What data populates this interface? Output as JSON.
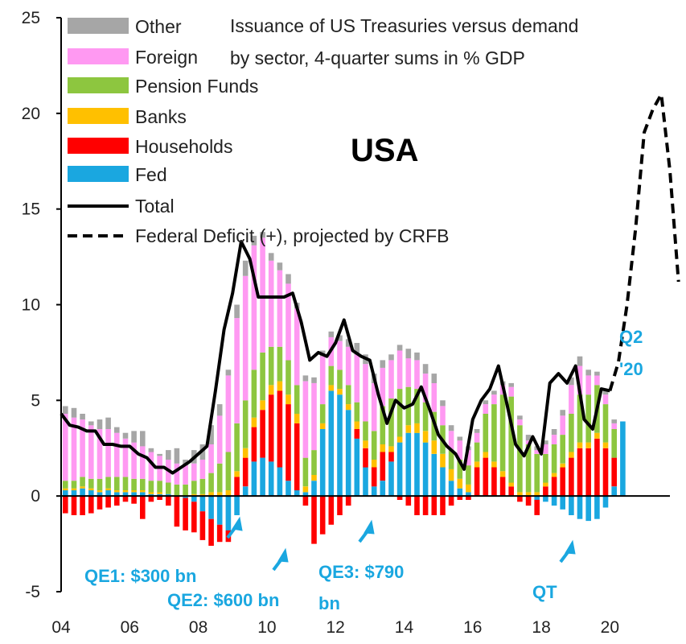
{
  "chart_data": {
    "type": "bar",
    "stacked": true,
    "title": [
      "Issuance of US Treasuries versus demand",
      "by sector, 4-quarter sums in % GDP"
    ],
    "country_label": "USA",
    "ylim": [
      -5,
      25
    ],
    "y_ticks": [
      "25",
      "20",
      "15",
      "10",
      "5",
      "0",
      "-5"
    ],
    "x_ticks": [
      "04",
      "06",
      "08",
      "10",
      "12",
      "14",
      "16",
      "18",
      "20"
    ],
    "legend": [
      {
        "label": "Other",
        "color": "#a6a6a6",
        "kind": "bar"
      },
      {
        "label": "Foreign",
        "color": "#ff99f2",
        "kind": "bar"
      },
      {
        "label": "Pension Funds",
        "color": "#8dc63f",
        "kind": "bar"
      },
      {
        "label": "Banks",
        "color": "#ffc000",
        "kind": "bar"
      },
      {
        "label": "Households",
        "color": "#ff0000",
        "kind": "bar"
      },
      {
        "label": "Fed",
        "color": "#1aa7e0",
        "kind": "bar"
      },
      {
        "label": "Total",
        "color": "#000000",
        "kind": "line"
      },
      {
        "label": "Federal Deficit (+), projected by CRFB",
        "color": "#000000",
        "kind": "dashed"
      }
    ],
    "annotations": [
      {
        "lines": [
          "QE1: $300 bn"
        ]
      },
      {
        "lines": [
          "QE2: $600 bn"
        ]
      },
      {
        "lines": [
          "QE3: $790",
          "bn"
        ]
      },
      {
        "lines": [
          "QT"
        ]
      },
      {
        "lines": [
          "Q2",
          "'20"
        ]
      }
    ],
    "quarters": [
      "04Q1",
      "04Q2",
      "04Q3",
      "04Q4",
      "05Q1",
      "05Q2",
      "05Q3",
      "05Q4",
      "06Q1",
      "06Q2",
      "06Q3",
      "06Q4",
      "07Q1",
      "07Q2",
      "07Q3",
      "07Q4",
      "08Q1",
      "08Q2",
      "08Q3",
      "08Q4",
      "09Q1",
      "09Q2",
      "09Q3",
      "09Q4",
      "10Q1",
      "10Q2",
      "10Q3",
      "10Q4",
      "11Q1",
      "11Q2",
      "11Q3",
      "11Q4",
      "12Q1",
      "12Q2",
      "12Q3",
      "12Q4",
      "13Q1",
      "13Q2",
      "13Q3",
      "13Q4",
      "14Q1",
      "14Q2",
      "14Q3",
      "14Q4",
      "15Q1",
      "15Q2",
      "15Q3",
      "15Q4",
      "16Q1",
      "16Q2",
      "16Q3",
      "16Q4",
      "17Q1",
      "17Q2",
      "17Q3",
      "17Q4",
      "18Q1",
      "18Q2",
      "18Q3",
      "18Q4",
      "19Q1",
      "19Q2",
      "19Q3",
      "19Q4",
      "20Q1",
      "20Q2"
    ],
    "series": [
      {
        "name": "Fed",
        "color": "#1aa7e0",
        "values": [
          0.3,
          0.3,
          0.4,
          0.3,
          0.2,
          0.3,
          0.2,
          0.2,
          0.2,
          0.2,
          0.1,
          0.1,
          0.1,
          0,
          -0.1,
          -0.3,
          -0.8,
          -1.2,
          -1.5,
          -1.8,
          -1.0,
          0.5,
          1.8,
          2.0,
          1.8,
          1.5,
          0.8,
          0.3,
          0.2,
          0.8,
          3.5,
          5.5,
          5.3,
          4.5,
          3.0,
          1.5,
          0.5,
          0.8,
          1.8,
          2.8,
          3.3,
          3.3,
          2.8,
          2.2,
          1.5,
          0.8,
          0.4,
          0.2,
          0,
          0,
          0,
          0,
          0,
          0,
          0,
          -0.2,
          -0.3,
          -0.5,
          -0.7,
          -1.0,
          -1.2,
          -1.3,
          -1.2,
          -0.6,
          0.5,
          3.9
        ]
      },
      {
        "name": "Households",
        "color": "#ff0000",
        "values": [
          -0.9,
          -1.0,
          -1.0,
          -0.9,
          -0.7,
          -0.6,
          -0.5,
          -0.3,
          -0.4,
          -1.2,
          -0.3,
          -0.2,
          -0.5,
          -1.6,
          -1.7,
          -1.6,
          -1.5,
          -1.4,
          -0.9,
          -0.6,
          1.0,
          1.5,
          1.8,
          2.5,
          3.5,
          4.0,
          4.0,
          3.5,
          -0.5,
          -2.5,
          -2.0,
          -1.5,
          -1.0,
          -0.5,
          0.5,
          1.0,
          1.0,
          1.5,
          0.5,
          -0.2,
          -0.5,
          -1.0,
          -1.0,
          -1.0,
          -1.0,
          -0.5,
          -0.2,
          -0.2,
          1.5,
          2.0,
          1.5,
          1.0,
          0.5,
          -0.3,
          -0.5,
          -0.8,
          0.5,
          1.0,
          1.5,
          2.0,
          2.5,
          2.5,
          3.0,
          2.5,
          1.5,
          0
        ]
      },
      {
        "name": "Banks",
        "color": "#ffc000",
        "values": [
          0.1,
          0.1,
          0.1,
          0.1,
          0.1,
          0.1,
          0.1,
          0.1,
          0.1,
          0.1,
          0.1,
          0.1,
          0,
          0,
          0,
          0.1,
          0.1,
          0.2,
          0.2,
          0.3,
          0.3,
          0.5,
          0.5,
          0.5,
          0.5,
          0.5,
          0.5,
          0.5,
          0.3,
          0.3,
          0.3,
          0.3,
          0.3,
          0.3,
          0.4,
          0.4,
          0.4,
          0.4,
          0.3,
          0.3,
          0.4,
          0.5,
          0.6,
          0.7,
          0.7,
          0.6,
          0.5,
          0.4,
          0.3,
          0.3,
          0.3,
          0.3,
          0.2,
          0.2,
          0.2,
          0.2,
          0.2,
          0.2,
          0.2,
          0.3,
          0.3,
          0.3,
          0.3,
          0.3,
          0,
          0
        ]
      },
      {
        "name": "Pension Funds",
        "color": "#8dc63f",
        "values": [
          0.4,
          0.4,
          0.5,
          0.5,
          0.6,
          0.6,
          0.7,
          0.7,
          0.6,
          0.6,
          0.6,
          0.6,
          0.6,
          0.6,
          0.6,
          0.7,
          0.8,
          1.0,
          1.5,
          2.0,
          2.5,
          2.5,
          2.5,
          2.5,
          2.0,
          1.8,
          1.8,
          1.5,
          1.5,
          1.3,
          1.0,
          1.0,
          1.0,
          1.0,
          1.0,
          1.0,
          1.5,
          2.0,
          2.5,
          2.5,
          2.0,
          1.8,
          1.5,
          1.5,
          1.5,
          1.0,
          1.0,
          1.0,
          1.0,
          2.0,
          3.0,
          4.0,
          4.5,
          3.5,
          2.5,
          2.0,
          1.5,
          1.5,
          1.5,
          2.0,
          2.5,
          2.5,
          2.5,
          2.0,
          1.5,
          0
        ]
      },
      {
        "name": "Foreign",
        "color": "#ff99f2",
        "values": [
          3.5,
          3.3,
          3.0,
          2.8,
          2.6,
          2.5,
          2.3,
          2.0,
          1.9,
          1.7,
          1.5,
          1.3,
          1.2,
          1.1,
          1.0,
          0.9,
          1.0,
          1.5,
          2.5,
          4.0,
          5.5,
          6.5,
          6.5,
          6.0,
          4.5,
          4.0,
          4.0,
          4.0,
          4.0,
          3.5,
          2.5,
          1.5,
          1.5,
          2.0,
          2.5,
          3.0,
          2.5,
          2.0,
          2.0,
          2.0,
          1.5,
          1.5,
          1.5,
          1.5,
          1.0,
          1.0,
          1.0,
          0.8,
          0.5,
          0.5,
          0.5,
          0.5,
          0.5,
          0.3,
          0.2,
          0.2,
          0.5,
          0.5,
          1.0,
          1.5,
          1.5,
          1.0,
          0.5,
          0.5,
          0.3,
          0
        ]
      },
      {
        "name": "Other",
        "color": "#a6a6a6",
        "values": [
          0.4,
          0.5,
          0.3,
          0.2,
          0.5,
          0.6,
          0.3,
          0.3,
          0.6,
          0.8,
          0.2,
          0.1,
          0.5,
          0.8,
          0.3,
          0.7,
          0.8,
          1.0,
          0.6,
          0.3,
          0.7,
          0.8,
          0.5,
          0.3,
          0.4,
          0.4,
          0.5,
          0.3,
          0.3,
          0.3,
          0.3,
          0.3,
          0.3,
          0.4,
          0.6,
          0.5,
          0.5,
          0.4,
          0.3,
          0.3,
          0.5,
          0.4,
          0.5,
          0.5,
          0.3,
          0.3,
          0.2,
          0.2,
          0.2,
          0.2,
          0.2,
          0.2,
          0.2,
          0.2,
          0.3,
          0.2,
          0.2,
          0.3,
          0.3,
          0.4,
          0.5,
          0.3,
          0.2,
          0.3,
          0.2,
          0
        ]
      }
    ],
    "total": {
      "name": "Total",
      "x": [
        2004.0,
        2004.25,
        2004.5,
        2004.75,
        2005.0,
        2005.25,
        2005.5,
        2005.75,
        2006.0,
        2006.25,
        2006.5,
        2006.75,
        2007.0,
        2007.25,
        2007.5,
        2007.75,
        2008.0,
        2008.25,
        2008.5,
        2008.75,
        2009.0,
        2009.25,
        2009.5,
        2009.75,
        2010.0,
        2010.25,
        2010.5,
        2010.75,
        2011.0,
        2011.25,
        2011.5,
        2011.75,
        2012.0,
        2012.25,
        2012.5,
        2012.75,
        2013.0,
        2013.25,
        2013.5,
        2013.75,
        2014.0,
        2014.25,
        2014.5,
        2014.75,
        2015.0,
        2015.25,
        2015.5,
        2015.75,
        2016.0,
        2016.25,
        2016.5,
        2016.75,
        2017.0,
        2017.25,
        2017.5,
        2017.75,
        2018.0,
        2018.25,
        2018.5,
        2018.75,
        2019.0,
        2019.25,
        2019.5,
        2019.75,
        2020.0
      ],
      "values": [
        4.3,
        3.7,
        3.6,
        3.4,
        3.4,
        2.7,
        2.7,
        2.6,
        2.6,
        2.2,
        2.0,
        1.5,
        1.5,
        1.2,
        1.5,
        1.8,
        2.2,
        2.6,
        5.5,
        8.7,
        10.6,
        13.3,
        12.4,
        10.4,
        10.4,
        10.4,
        10.4,
        10.6,
        9.1,
        7.1,
        7.5,
        7.3,
        8.0,
        9.2,
        7.6,
        7.3,
        7.1,
        5.3,
        3.8,
        5.0,
        4.6,
        4.8,
        5.7,
        4.5,
        3.2,
        2.6,
        2.2,
        1.4,
        4.0,
        5.0,
        5.6,
        6.8,
        4.8,
        2.7,
        2.1,
        3.1,
        2.2,
        5.9,
        6.4,
        5.9,
        6.8,
        4.0,
        3.5,
        5.6,
        5.5
      ]
    },
    "deficit_projection": {
      "name": "Federal Deficit (+), projected by CRFB",
      "x": [
        2020.0,
        2020.25,
        2020.5,
        2020.75,
        2021.0,
        2021.25,
        2021.5,
        2021.75,
        2022.0
      ],
      "values": [
        5.5,
        7.0,
        10.0,
        14.0,
        19.0,
        20.2,
        21.0,
        17.0,
        11.2
      ]
    }
  }
}
